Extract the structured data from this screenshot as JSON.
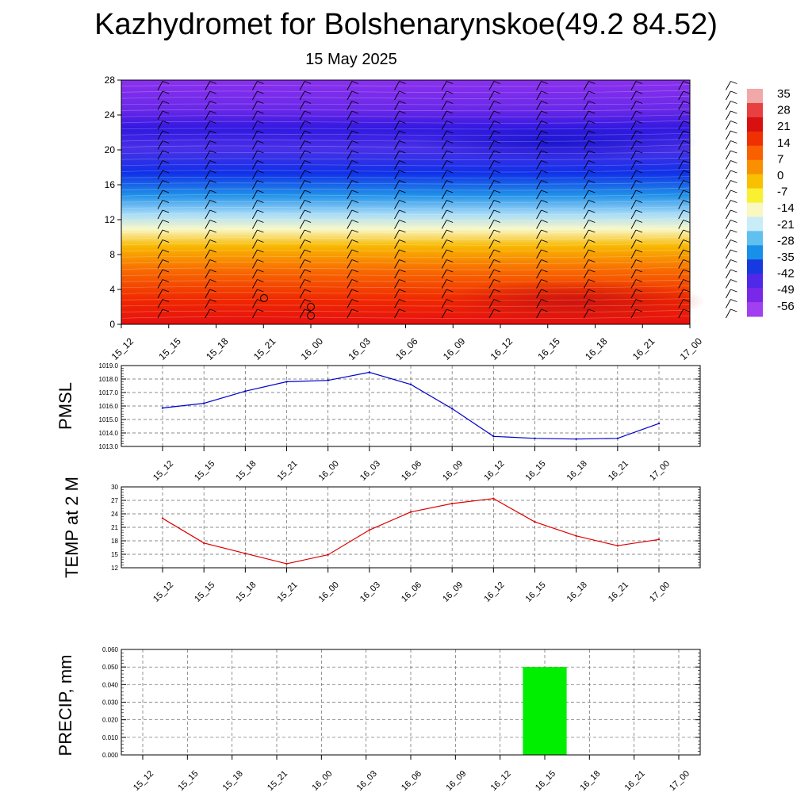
{
  "title": "Kazhydromet for Bolshenarynskoe(49.2 84.52)",
  "subtitle": "15 May 2025",
  "chart_data": [
    {
      "type": "heatmap",
      "description_of_axes": "",
      "x_categories": [
        "15_12",
        "15_15",
        "15_18",
        "15_21",
        "16_00",
        "16_03",
        "16_06",
        "16_09",
        "16_12",
        "16_15",
        "16_18",
        "16_21",
        "17_00"
      ],
      "y_ticks": [
        0,
        4,
        8,
        12,
        16,
        20,
        24,
        28
      ],
      "ylim": [
        0,
        28
      ],
      "colorbar_labels": [
        "35",
        "28",
        "21",
        "14",
        "7",
        "0",
        "-7",
        "-14",
        "-21",
        "-28",
        "-35",
        "-42",
        "-49",
        "-56"
      ],
      "colorbar_colors": [
        "#f0a8a8",
        "#e84040",
        "#d81010",
        "#f03000",
        "#f86000",
        "#f89000",
        "#f8c000",
        "#f8f030",
        "#f8f8c0",
        "#c8ecf8",
        "#60c0f0",
        "#1890e8",
        "#1838e0",
        "#5028e8",
        "#7a28e8",
        "#a040f0"
      ]
    },
    {
      "type": "line",
      "ylabel": "PMSL",
      "categories": [
        "15_12",
        "15_15",
        "15_18",
        "15_21",
        "16_00",
        "16_03",
        "16_06",
        "16_09",
        "16_12",
        "16_15",
        "16_18",
        "16_21",
        "17_00"
      ],
      "values": [
        1015.85,
        1016.2,
        1017.1,
        1017.8,
        1017.9,
        1018.5,
        1017.6,
        1015.8,
        1013.75,
        1013.6,
        1013.55,
        1013.6,
        1014.7
      ],
      "ylim": [
        1013.0,
        1019.0
      ],
      "ytick_labels": [
        "1013.0",
        "1014.0",
        "1015.0",
        "1016.0",
        "1017.0",
        "1018.0",
        "1019.0"
      ],
      "color": "#0000cc"
    },
    {
      "type": "line",
      "ylabel": "TEMP at 2 M",
      "categories": [
        "15_12",
        "15_15",
        "15_18",
        "15_21",
        "16_00",
        "16_03",
        "16_06",
        "16_09",
        "16_12",
        "16_15",
        "16_18",
        "16_21",
        "17_00"
      ],
      "values": [
        23.0,
        17.5,
        15.2,
        12.9,
        14.9,
        20.4,
        24.4,
        26.3,
        27.4,
        22.2,
        19.1,
        16.9,
        18.3
      ],
      "ylim": [
        12,
        30
      ],
      "ytick_labels": [
        "12",
        "15",
        "18",
        "21",
        "24",
        "27",
        "30"
      ],
      "color": "#dd0000"
    },
    {
      "type": "bar",
      "ylabel": "PRECIP, mm",
      "categories": [
        "15_12",
        "15_15",
        "15_18",
        "15_21",
        "16_00",
        "16_03",
        "16_06",
        "16_09",
        "16_12",
        "16_15",
        "16_18",
        "16_21",
        "17_00"
      ],
      "values": [
        0,
        0,
        0,
        0,
        0,
        0,
        0,
        0,
        0,
        0.05,
        0,
        0,
        0
      ],
      "ylim": [
        0,
        0.06
      ],
      "ytick_labels": [
        "0.000",
        "0.010",
        "0.020",
        "0.030",
        "0.040",
        "0.050",
        "0.060"
      ],
      "color": "#00ee00"
    }
  ]
}
